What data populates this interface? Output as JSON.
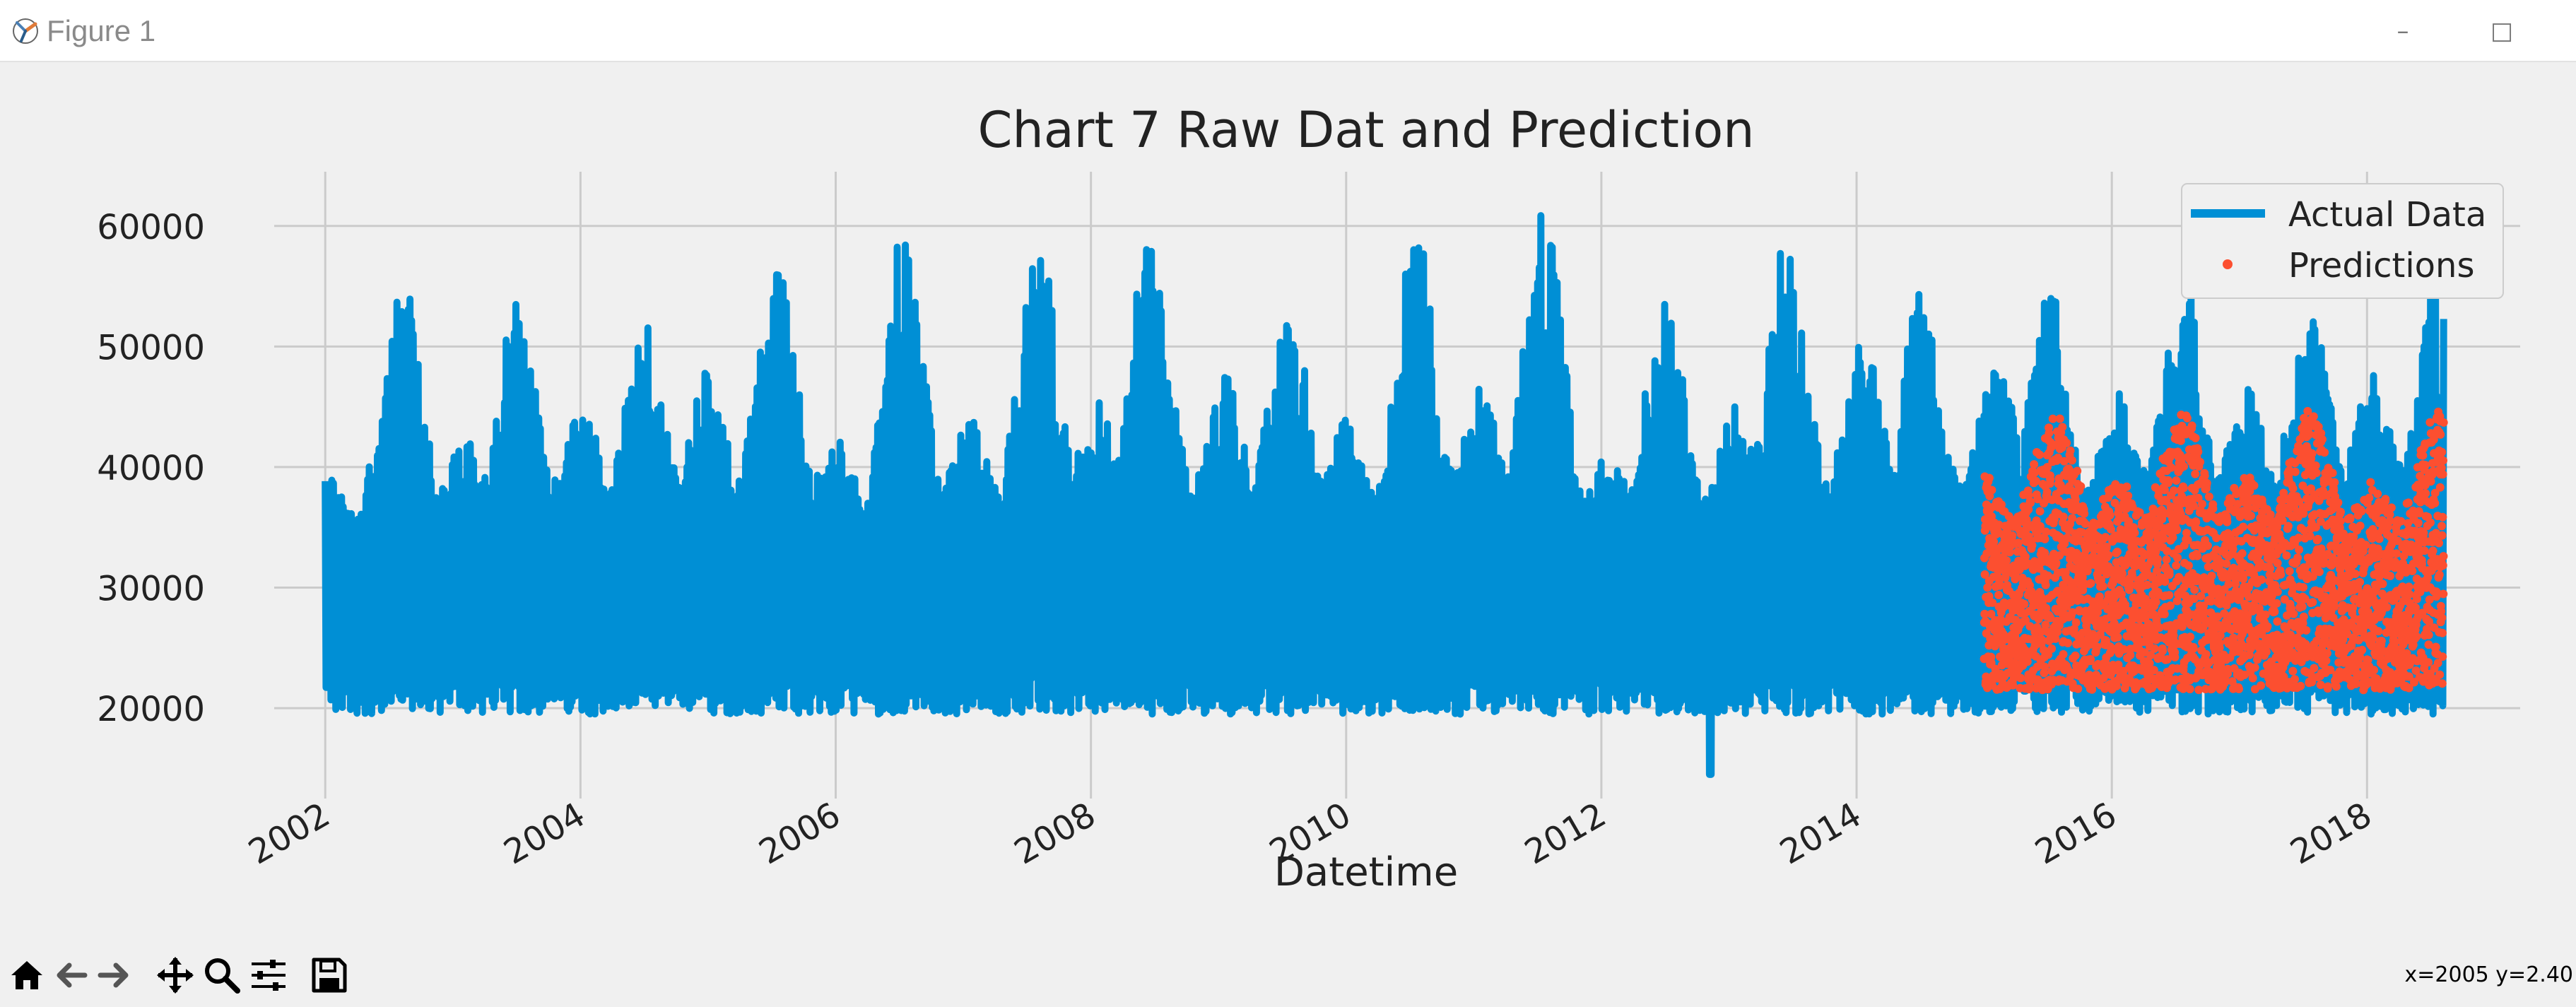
{
  "window": {
    "title": "Figure 1",
    "minimize_glyph": "–",
    "maximize_glyph": "□"
  },
  "toolbar": {
    "tools": [
      "home-icon",
      "back-arrow-icon",
      "forward-arrow-icon",
      "pan-icon",
      "zoom-icon",
      "configure-subplots-icon",
      "save-icon"
    ],
    "coordinates": "x=2005 y=2.40"
  },
  "chart_data": {
    "type": "line",
    "title": "Chart 7 Raw Dat and Prediction",
    "xlabel": "Datetime",
    "ylabel": "",
    "x_ticks": [
      2002,
      2004,
      2006,
      2008,
      2010,
      2012,
      2014,
      2016,
      2018
    ],
    "y_ticks": [
      20000,
      30000,
      40000,
      50000,
      60000
    ],
    "xlim": [
      2001.6,
      2019.2
    ],
    "ylim": [
      12500,
      64500
    ],
    "grid": true,
    "legend": "top-right",
    "colors": {
      "actual": "#008fd5",
      "predictions": "#fc4f30",
      "background": "#f0f0f0",
      "grid": "#cbcbcb"
    },
    "series": [
      {
        "name": "Actual Data",
        "style": "line",
        "color": "#008fd5",
        "x_range": [
          2002.0,
          2018.6
        ],
        "base": 29000,
        "min": 19000,
        "peaks": [
          {
            "x": 2002.0,
            "y": 40000
          },
          {
            "x": 2002.6,
            "y": 56000
          },
          {
            "x": 2003.1,
            "y": 42500
          },
          {
            "x": 2003.5,
            "y": 53800
          },
          {
            "x": 2004.0,
            "y": 45800
          },
          {
            "x": 2004.5,
            "y": 52000
          },
          {
            "x": 2005.0,
            "y": 48000
          },
          {
            "x": 2005.55,
            "y": 58800
          },
          {
            "x": 2006.0,
            "y": 42500
          },
          {
            "x": 2006.55,
            "y": 62000
          },
          {
            "x": 2007.05,
            "y": 44000
          },
          {
            "x": 2007.6,
            "y": 59500
          },
          {
            "x": 2008.05,
            "y": 45500
          },
          {
            "x": 2008.45,
            "y": 59800
          },
          {
            "x": 2009.05,
            "y": 47500
          },
          {
            "x": 2009.55,
            "y": 54000
          },
          {
            "x": 2010.0,
            "y": 44000
          },
          {
            "x": 2010.55,
            "y": 60000
          },
          {
            "x": 2011.05,
            "y": 46500
          },
          {
            "x": 2011.55,
            "y": 61700
          },
          {
            "x": 2012.05,
            "y": 41500
          },
          {
            "x": 2012.5,
            "y": 55000
          },
          {
            "x": 2013.05,
            "y": 45500
          },
          {
            "x": 2013.45,
            "y": 59300
          },
          {
            "x": 2014.05,
            "y": 50500
          },
          {
            "x": 2014.5,
            "y": 55000
          },
          {
            "x": 2015.1,
            "y": 49500
          },
          {
            "x": 2015.5,
            "y": 55500
          },
          {
            "x": 2016.05,
            "y": 46500
          },
          {
            "x": 2016.55,
            "y": 56500
          },
          {
            "x": 2017.05,
            "y": 47000
          },
          {
            "x": 2017.55,
            "y": 54000
          },
          {
            "x": 2018.05,
            "y": 49000
          },
          {
            "x": 2018.55,
            "y": 56000
          }
        ],
        "dip": {
          "x": 2012.85,
          "y": 14500
        }
      },
      {
        "name": "Predictions",
        "style": "markers",
        "color": "#fc4f30",
        "x_range": [
          2015.0,
          2018.6
        ],
        "min": 21500,
        "peaks": [
          {
            "x": 2015.0,
            "y": 39500
          },
          {
            "x": 2015.55,
            "y": 44800
          },
          {
            "x": 2016.05,
            "y": 39000
          },
          {
            "x": 2016.55,
            "y": 44800
          },
          {
            "x": 2017.05,
            "y": 39500
          },
          {
            "x": 2017.55,
            "y": 44800
          },
          {
            "x": 2018.05,
            "y": 39000
          },
          {
            "x": 2018.55,
            "y": 44800
          }
        ]
      }
    ]
  }
}
